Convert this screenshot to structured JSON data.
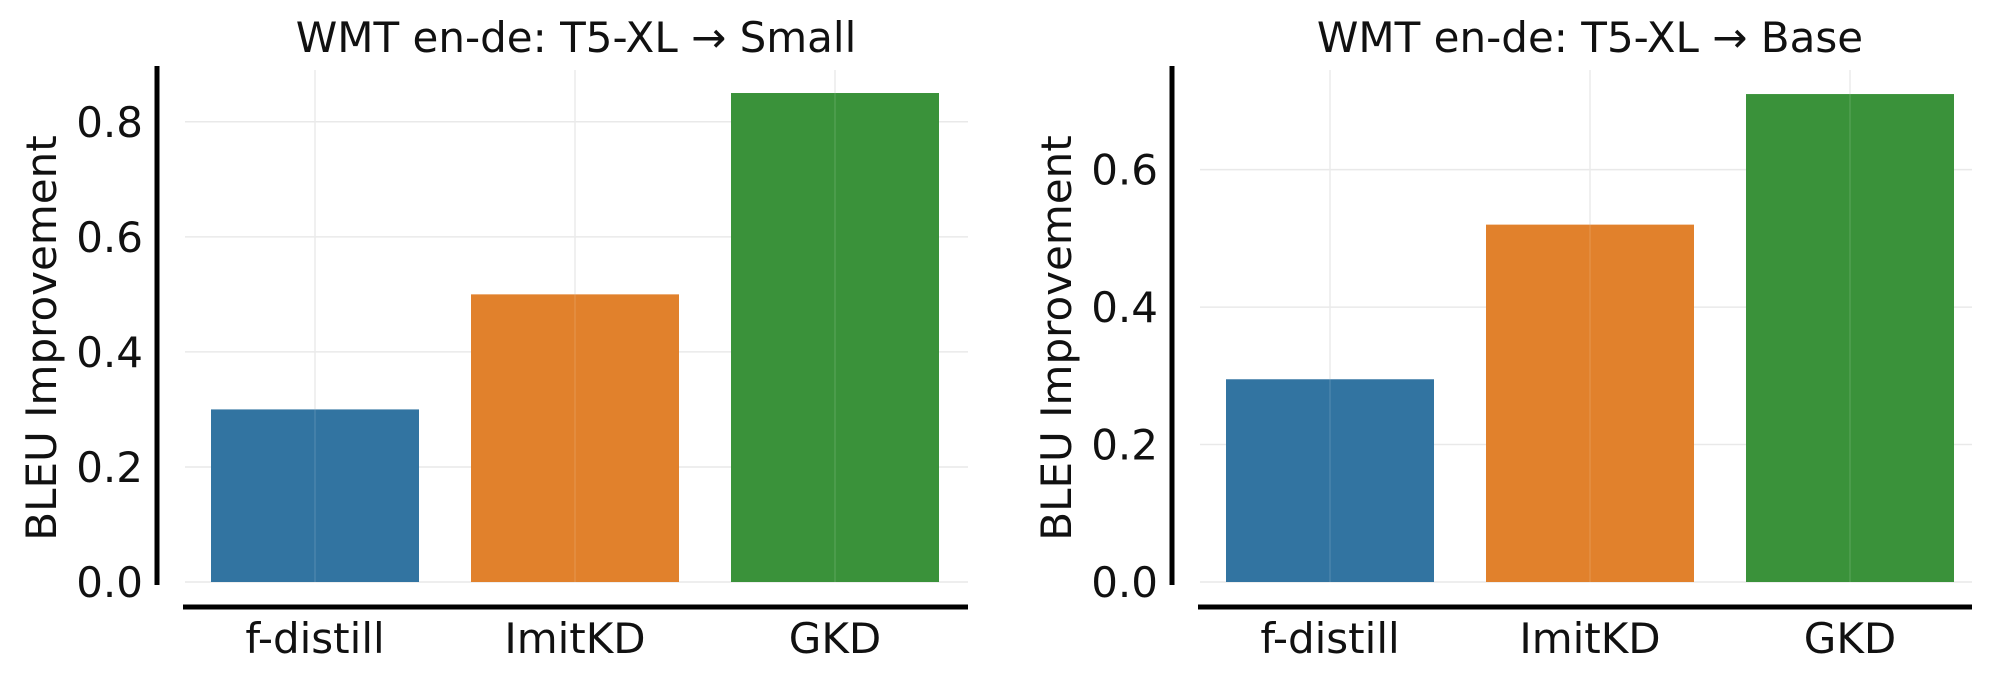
{
  "chart_data": [
    {
      "type": "bar",
      "title": "WMT en-de: T5-XL → Small",
      "xlabel": "",
      "ylabel": "BLEU Improvement",
      "categories": [
        "f-distill",
        "ImitKD",
        "GKD"
      ],
      "values": [
        0.3,
        0.5,
        0.85
      ],
      "colors": [
        "#3274a1",
        "#e1812c",
        "#3a923a"
      ],
      "ylim": [
        0,
        0.89
      ],
      "yticks": [
        0.0,
        0.2,
        0.4,
        0.6,
        0.8
      ],
      "ytick_labels": [
        "0.0",
        "0.2",
        "0.4",
        "0.6",
        "0.8"
      ],
      "grid": true,
      "legend": "none"
    },
    {
      "type": "bar",
      "title": "WMT en-de: T5-XL → Base",
      "xlabel": "",
      "ylabel": "BLEU Improvement",
      "categories": [
        "f-distill",
        "ImitKD",
        "GKD"
      ],
      "values": [
        0.295,
        0.52,
        0.71
      ],
      "colors": [
        "#3274a1",
        "#e1812c",
        "#3a923a"
      ],
      "ylim": [
        0,
        0.745
      ],
      "yticks": [
        0.0,
        0.2,
        0.4,
        0.6
      ],
      "ytick_labels": [
        "0.0",
        "0.2",
        "0.4",
        "0.6"
      ],
      "grid": true,
      "legend": "none"
    }
  ]
}
